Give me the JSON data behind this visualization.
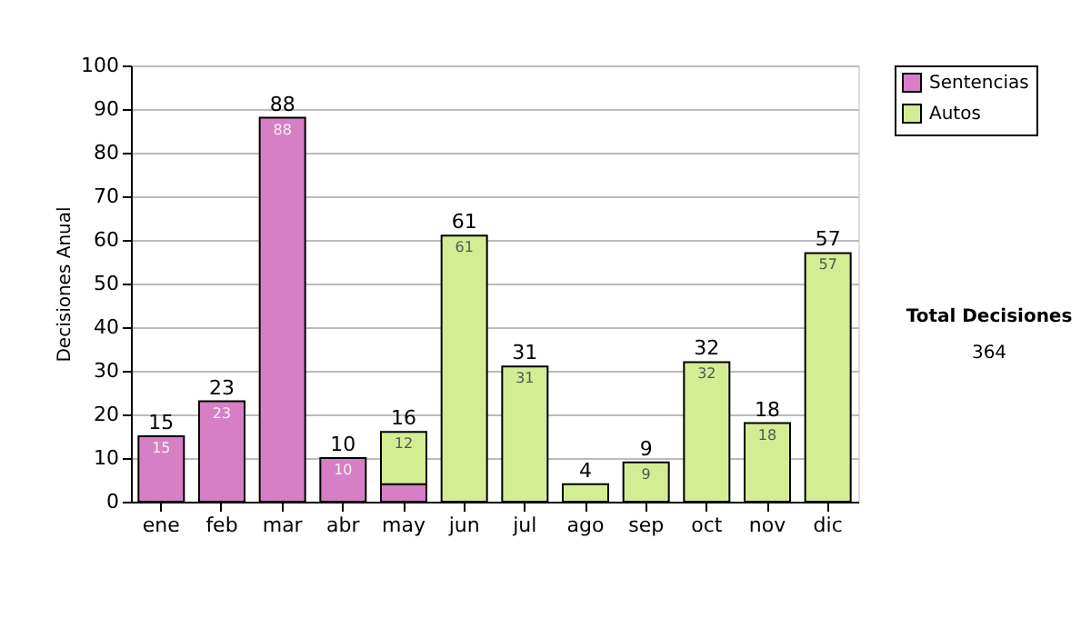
{
  "chart_data": {
    "type": "bar",
    "stacked": true,
    "ylabel": "Decisiones Anual",
    "categories": [
      "ene",
      "feb",
      "mar",
      "abr",
      "may",
      "jun",
      "jul",
      "ago",
      "sep",
      "oct",
      "nov",
      "dic"
    ],
    "series": [
      {
        "name": "Sentencias",
        "color": "#d67fc4",
        "values": [
          15,
          23,
          88,
          10,
          4,
          null,
          null,
          null,
          null,
          null,
          null,
          null
        ],
        "value_labels": [
          "15",
          "23",
          "88",
          "10",
          null,
          null,
          null,
          null,
          null,
          null,
          null,
          null
        ]
      },
      {
        "name": "Autos",
        "color": "#d4ec94",
        "values": [
          null,
          null,
          null,
          null,
          12,
          61,
          31,
          4,
          9,
          32,
          18,
          57
        ],
        "value_labels": [
          null,
          null,
          null,
          null,
          "12",
          "61",
          "31",
          null,
          "9",
          "32",
          "18",
          "57"
        ]
      }
    ],
    "totals": [
      "15",
      "23",
      "88",
      "10",
      "16",
      "61",
      "31",
      "4",
      "9",
      "32",
      "18",
      "57"
    ],
    "ylim": [
      0,
      100
    ],
    "yticks": [
      0,
      10,
      20,
      30,
      40,
      50,
      60,
      70,
      80,
      90,
      100
    ],
    "grid": "y",
    "legend": "right",
    "annotations": [
      "Total Decisiones",
      "364"
    ]
  }
}
